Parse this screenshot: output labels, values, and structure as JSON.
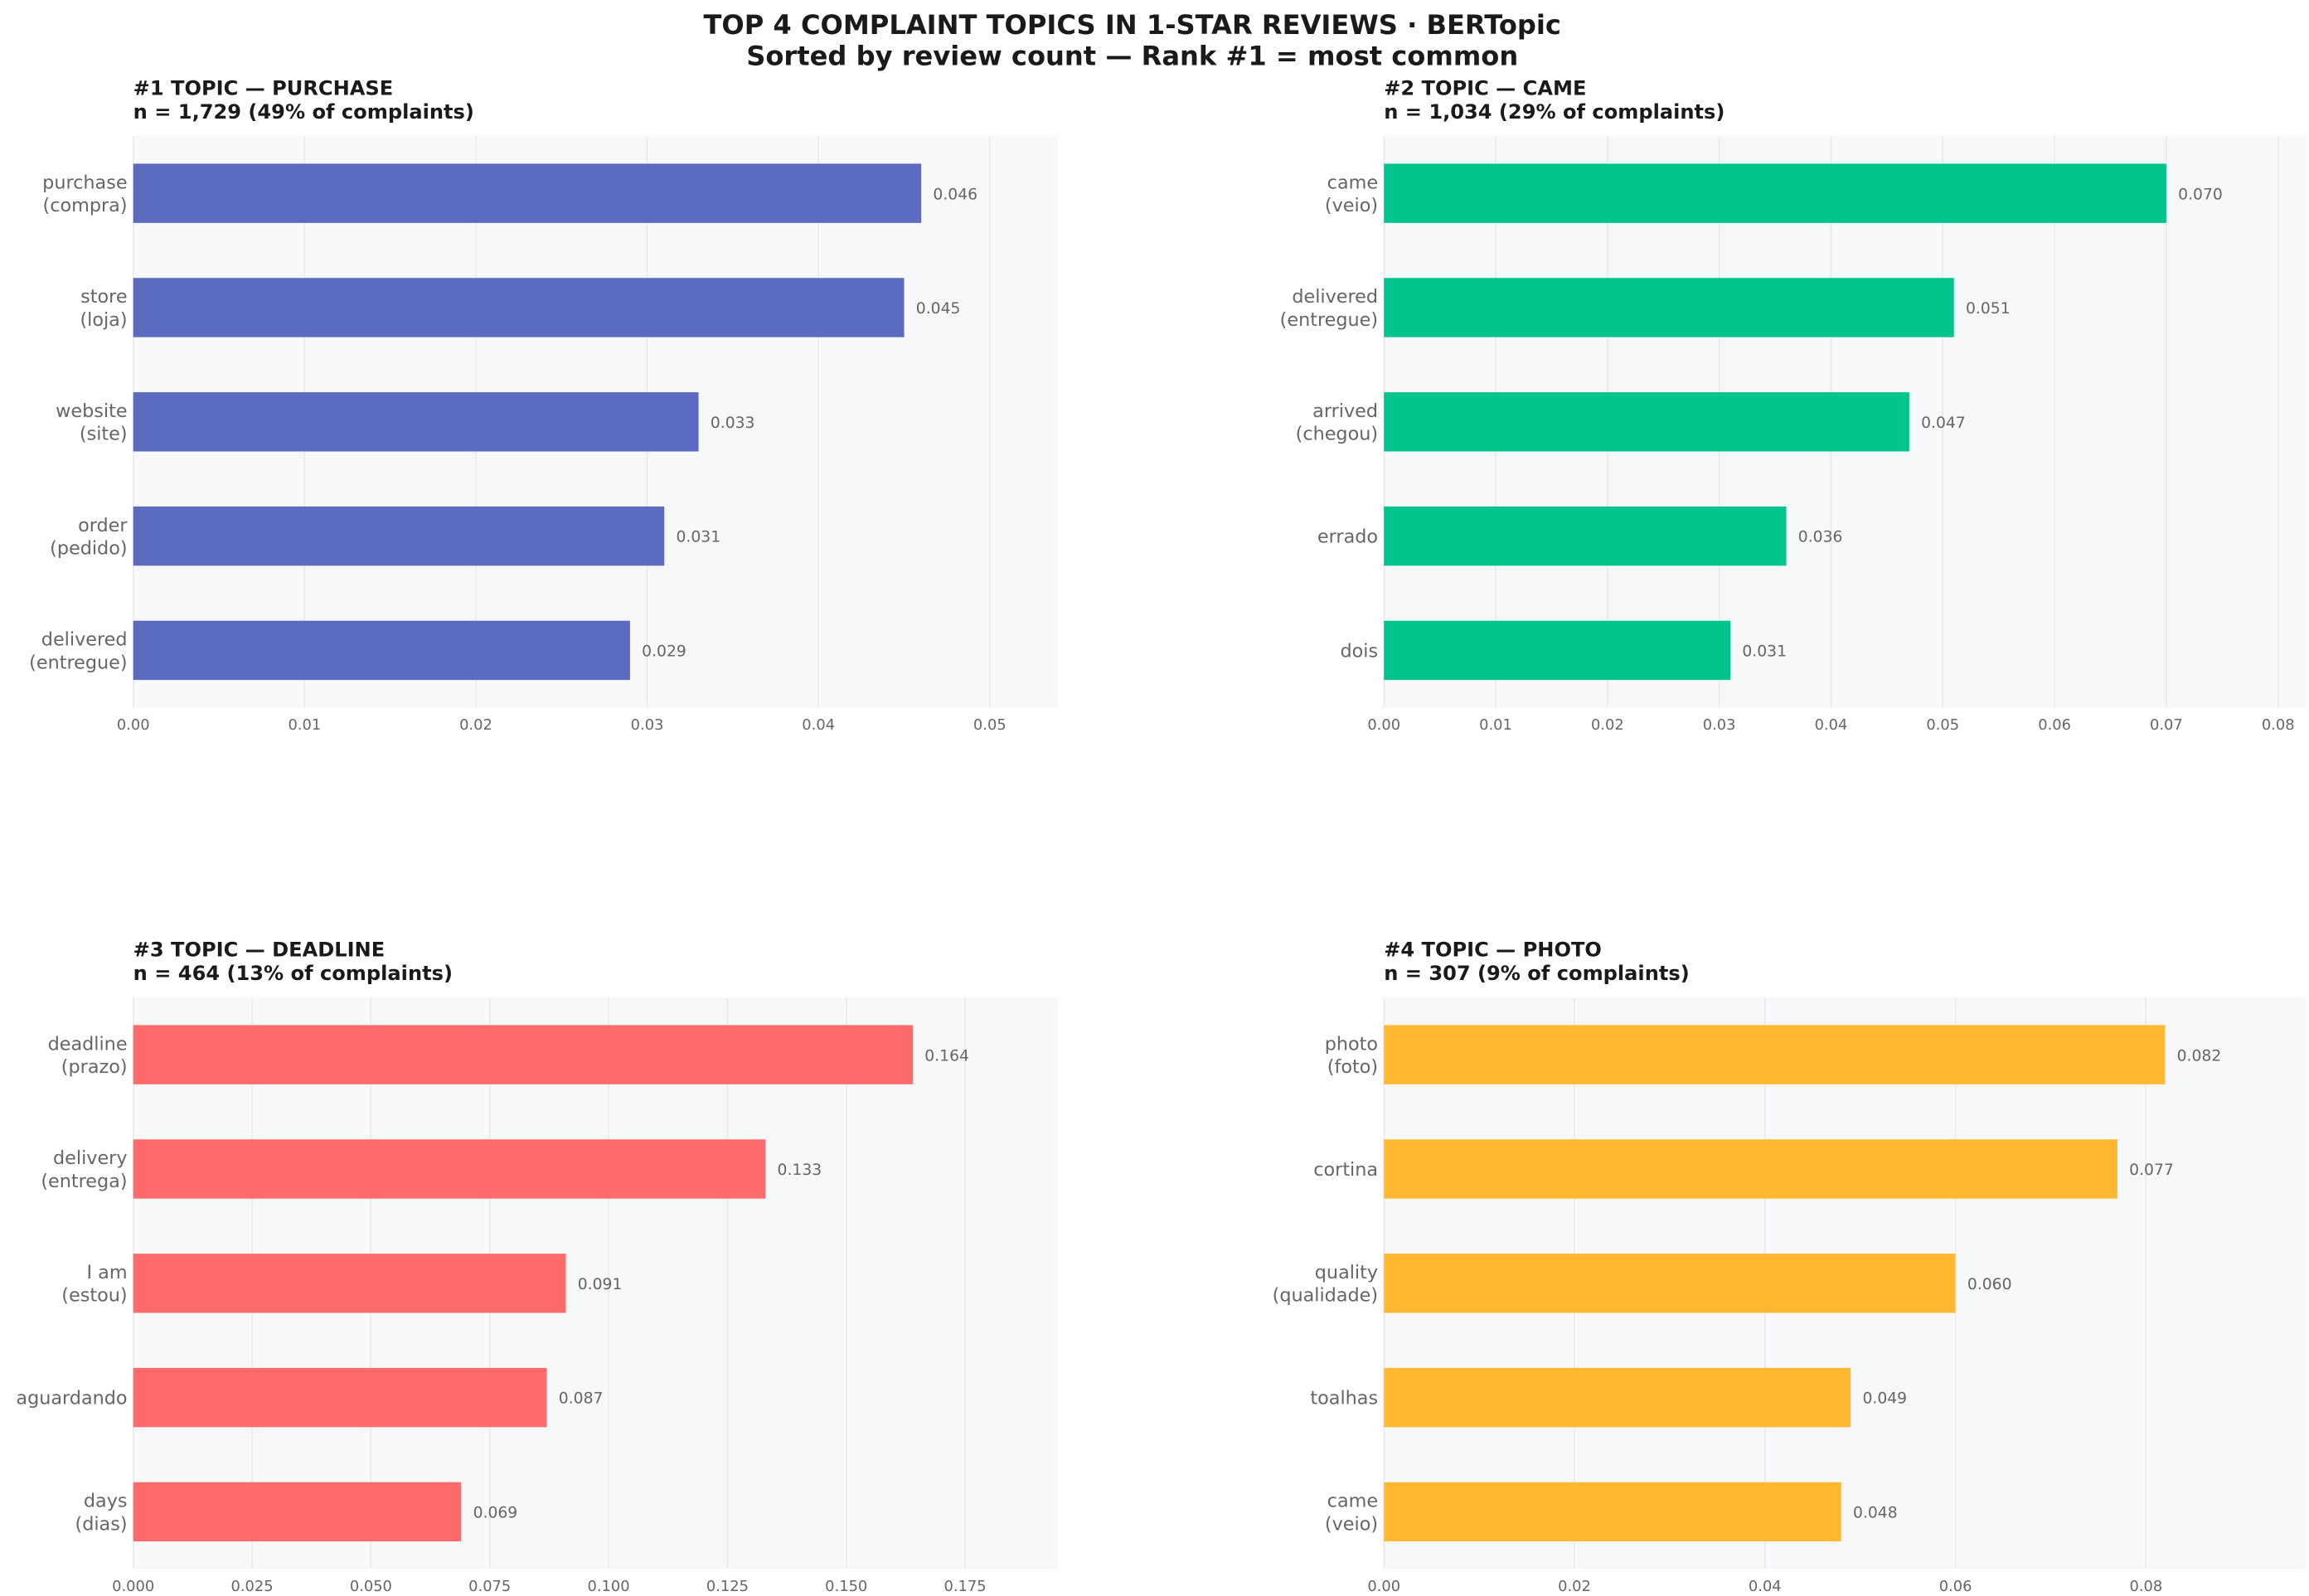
{
  "title": {
    "line1": "TOP 4 COMPLAINT TOPICS IN 1-STAR REVIEWS  ·  BERTopic",
    "line2": "Sorted by review count  —  Rank #1 = most common"
  },
  "chart_data": [
    {
      "type": "bar",
      "orientation": "horizontal",
      "title": "#1  TOPIC — PURCHASE",
      "subtitle": "n = 1,729   (49% of complaints)",
      "color": "#5C6BC0",
      "categories": [
        [
          "purchase",
          "(compra)"
        ],
        [
          "store",
          "(loja)"
        ],
        [
          "website",
          "(site)"
        ],
        [
          "order",
          "(pedido)"
        ],
        [
          "delivered",
          "(entregue)"
        ]
      ],
      "values": [
        0.046,
        0.045,
        0.033,
        0.031,
        0.029
      ],
      "value_labels": [
        "0.046",
        "0.045",
        "0.033",
        "0.031",
        "0.029"
      ],
      "xlim": [
        0,
        0.054
      ],
      "xticks": [
        "0.00",
        "0.01",
        "0.02",
        "0.03",
        "0.04",
        "0.05"
      ],
      "grid": true
    },
    {
      "type": "bar",
      "orientation": "horizontal",
      "title": "#2  TOPIC — CAME",
      "subtitle": "n = 1,034   (29% of complaints)",
      "color": "#00C48C",
      "categories": [
        [
          "came",
          "(veio)"
        ],
        [
          "delivered",
          "(entregue)"
        ],
        [
          "arrived",
          "(chegou)"
        ],
        [
          "errado"
        ],
        [
          "dois"
        ]
      ],
      "values": [
        0.07,
        0.051,
        0.047,
        0.036,
        0.031
      ],
      "value_labels": [
        "0.070",
        "0.051",
        "0.047",
        "0.036",
        "0.031"
      ],
      "xlim": [
        0,
        0.0825
      ],
      "xticks": [
        "0.00",
        "0.01",
        "0.02",
        "0.03",
        "0.04",
        "0.05",
        "0.06",
        "0.07",
        "0.08"
      ],
      "grid": true
    },
    {
      "type": "bar",
      "orientation": "horizontal",
      "title": "#3  TOPIC — DEADLINE",
      "subtitle": "n = 464   (13% of complaints)",
      "color": "#FF6B6B",
      "categories": [
        [
          "deadline",
          "(prazo)"
        ],
        [
          "delivery",
          "(entrega)"
        ],
        [
          "I am",
          "(estou)"
        ],
        [
          "aguardando"
        ],
        [
          "days",
          "(dias)"
        ]
      ],
      "values": [
        0.164,
        0.133,
        0.091,
        0.087,
        0.069
      ],
      "value_labels": [
        "0.164",
        "0.133",
        "0.091",
        "0.087",
        "0.069"
      ],
      "xlim": [
        0,
        0.1946
      ],
      "xticks": [
        "0.000",
        "0.025",
        "0.050",
        "0.075",
        "0.100",
        "0.125",
        "0.150",
        "0.175"
      ],
      "grid": true
    },
    {
      "type": "bar",
      "orientation": "horizontal",
      "title": "#4  TOPIC — PHOTO",
      "subtitle": "n = 307   (9% of complaints)",
      "color": "#FFB830",
      "categories": [
        [
          "photo",
          "(foto)"
        ],
        [
          "cortina"
        ],
        [
          "quality",
          "(qualidade)"
        ],
        [
          "toalhas"
        ],
        [
          "came",
          "(veio)"
        ]
      ],
      "values": [
        0.082,
        0.077,
        0.06,
        0.049,
        0.048
      ],
      "value_labels": [
        "0.082",
        "0.077",
        "0.060",
        "0.049",
        "0.048"
      ],
      "xlim": [
        0,
        0.0968
      ],
      "xticks": [
        "0.00",
        "0.02",
        "0.04",
        "0.06",
        "0.08"
      ],
      "grid": true
    }
  ]
}
